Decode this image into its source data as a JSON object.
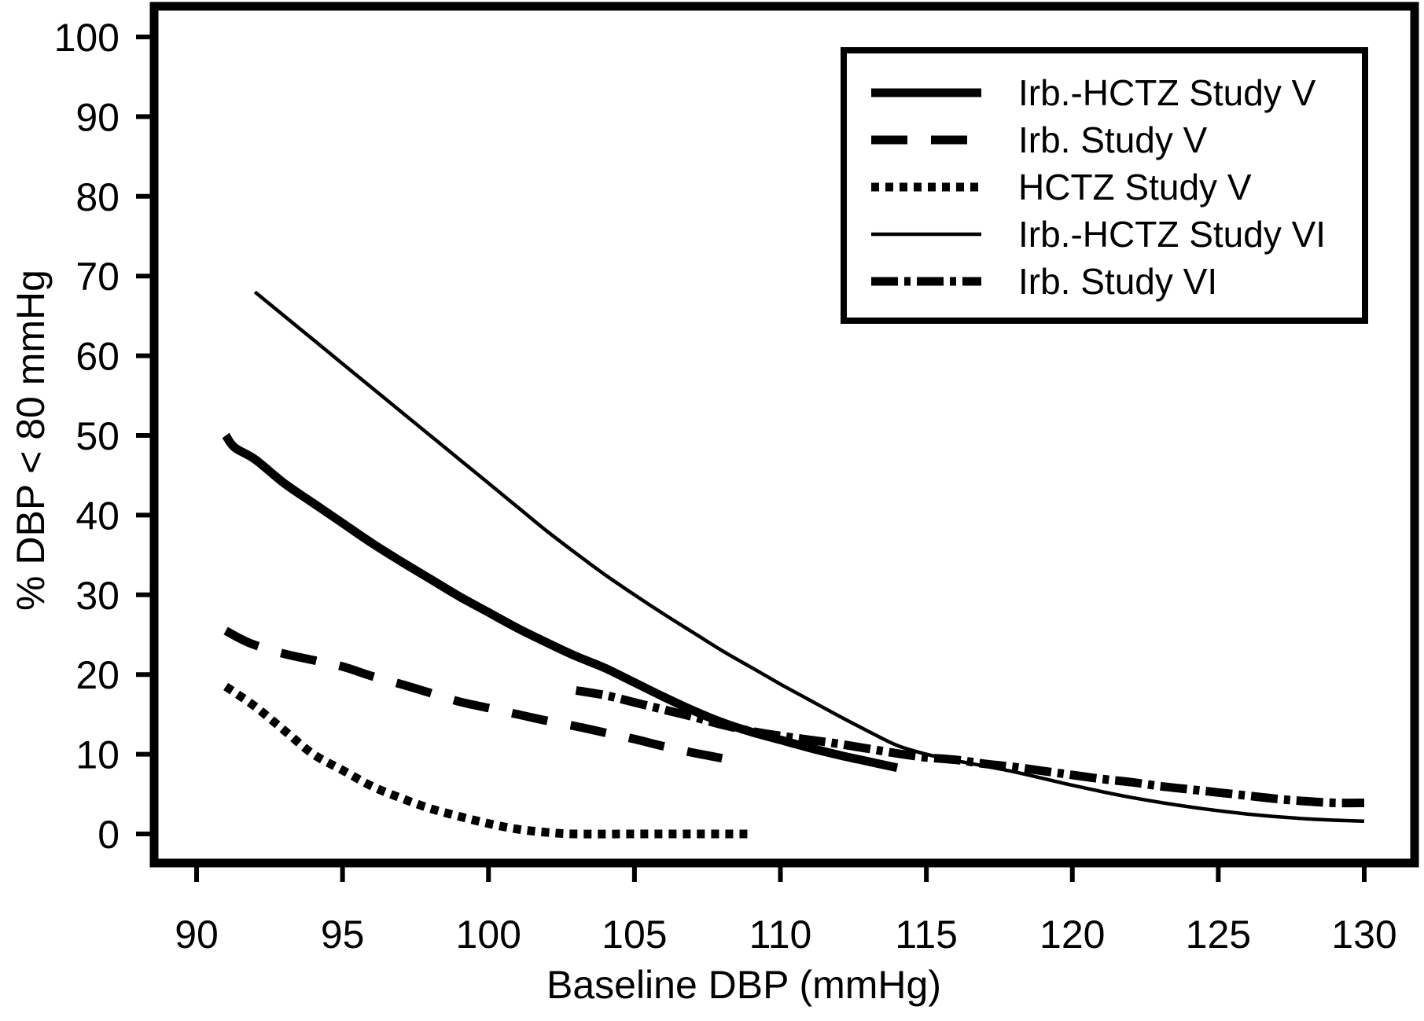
{
  "chart_data": {
    "type": "line",
    "title": "",
    "xlabel": "Baseline DBP (mmHg)",
    "ylabel": "% DBP < 80 mmHg",
    "xlim": [
      90,
      130
    ],
    "ylim": [
      0,
      100
    ],
    "xticks": [
      90,
      95,
      100,
      105,
      110,
      115,
      120,
      125,
      130
    ],
    "yticks": [
      0,
      10,
      20,
      30,
      40,
      50,
      60,
      70,
      80,
      90,
      100
    ],
    "legend_position": "top-right",
    "series": [
      {
        "name": "Irb.-HCTZ Study V",
        "style": "solid-thick",
        "points": [
          [
            91,
            50
          ],
          [
            91.3,
            48.5
          ],
          [
            92,
            47
          ],
          [
            93,
            44
          ],
          [
            94,
            41.5
          ],
          [
            95,
            39
          ],
          [
            96,
            36.5
          ],
          [
            97,
            34.2
          ],
          [
            98,
            32
          ],
          [
            99,
            29.8
          ],
          [
            100,
            27.8
          ],
          [
            101,
            25.8
          ],
          [
            102,
            24
          ],
          [
            103,
            22.3
          ],
          [
            104,
            20.8
          ],
          [
            105,
            19
          ],
          [
            106,
            17.2
          ],
          [
            107,
            15.5
          ],
          [
            108,
            14
          ],
          [
            109,
            12.8
          ],
          [
            110,
            11.8
          ],
          [
            111,
            10.8
          ],
          [
            112,
            9.9
          ],
          [
            113,
            9.1
          ],
          [
            114,
            8.3
          ]
        ]
      },
      {
        "name": "Irb. Study V",
        "style": "dashed",
        "points": [
          [
            91,
            25.5
          ],
          [
            91.5,
            24.5
          ],
          [
            92,
            23.7
          ],
          [
            93,
            22.6
          ],
          [
            94,
            21.8
          ],
          [
            95,
            21
          ],
          [
            96,
            19.8
          ],
          [
            97,
            18.8
          ],
          [
            98,
            17.7
          ],
          [
            99,
            16.6
          ],
          [
            100,
            15.8
          ],
          [
            101,
            15
          ],
          [
            102,
            14.2
          ],
          [
            103,
            13.5
          ],
          [
            104,
            12.7
          ],
          [
            105,
            11.9
          ],
          [
            106,
            11
          ],
          [
            107,
            10.2
          ],
          [
            108,
            9.5
          ]
        ]
      },
      {
        "name": "HCTZ Study V",
        "style": "dotted",
        "points": [
          [
            91,
            18.5
          ],
          [
            92,
            16
          ],
          [
            93,
            13
          ],
          [
            94,
            10
          ],
          [
            95,
            8
          ],
          [
            96,
            6
          ],
          [
            97,
            4.5
          ],
          [
            98,
            3.2
          ],
          [
            99,
            2.2
          ],
          [
            100,
            1.3
          ],
          [
            101,
            0.6
          ],
          [
            102,
            0.2
          ],
          [
            103,
            0
          ],
          [
            105,
            0
          ],
          [
            107,
            0
          ],
          [
            109,
            0
          ]
        ]
      },
      {
        "name": "Irb.-HCTZ Study VI",
        "style": "solid-thin",
        "points": [
          [
            92,
            68
          ],
          [
            93,
            65
          ],
          [
            94,
            62
          ],
          [
            95,
            59
          ],
          [
            96,
            56
          ],
          [
            97,
            53
          ],
          [
            98,
            50
          ],
          [
            99,
            47
          ],
          [
            100,
            44
          ],
          [
            101,
            41
          ],
          [
            102,
            38
          ],
          [
            103,
            35.2
          ],
          [
            104,
            32.5
          ],
          [
            105,
            30
          ],
          [
            106,
            27.6
          ],
          [
            107,
            25.3
          ],
          [
            108,
            23
          ],
          [
            109,
            20.9
          ],
          [
            110,
            18.8
          ],
          [
            111,
            16.8
          ],
          [
            112,
            14.8
          ],
          [
            113,
            12.9
          ],
          [
            114,
            11.1
          ],
          [
            115,
            10
          ],
          [
            116,
            9.2
          ],
          [
            118,
            7.8
          ],
          [
            120,
            6.1
          ],
          [
            122,
            4.6
          ],
          [
            124,
            3.4
          ],
          [
            126,
            2.5
          ],
          [
            128,
            1.9
          ],
          [
            130,
            1.6
          ]
        ]
      },
      {
        "name": "Irb. Study VI",
        "style": "dash-dot",
        "points": [
          [
            103,
            18
          ],
          [
            104,
            17.4
          ],
          [
            105,
            16.5
          ],
          [
            106,
            15.6
          ],
          [
            107,
            14.7
          ],
          [
            108,
            13.7
          ],
          [
            109,
            12.9
          ],
          [
            110,
            12.3
          ],
          [
            111,
            11.8
          ],
          [
            112,
            11.3
          ],
          [
            113,
            10.7
          ],
          [
            114,
            10.1
          ],
          [
            115,
            9.6
          ],
          [
            116,
            9.3
          ],
          [
            117,
            8.8
          ],
          [
            118,
            8.4
          ],
          [
            119,
            7.9
          ],
          [
            120,
            7.4
          ],
          [
            121,
            6.9
          ],
          [
            122,
            6.5
          ],
          [
            123,
            6
          ],
          [
            124,
            5.6
          ],
          [
            125,
            5.2
          ],
          [
            126,
            4.8
          ],
          [
            127,
            4.4
          ],
          [
            128,
            4.1
          ],
          [
            129,
            3.9
          ],
          [
            130,
            3.9
          ]
        ]
      }
    ]
  }
}
